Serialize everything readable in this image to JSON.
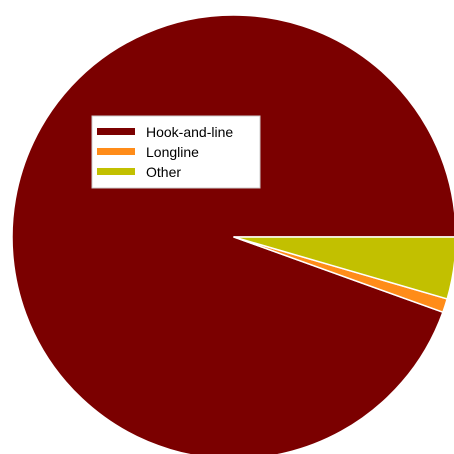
{
  "chart_data": {
    "type": "pie",
    "title": "",
    "slices": [
      {
        "label": "Hook-and-line",
        "value": 94.5,
        "color": "#7b0000"
      },
      {
        "label": "Longline",
        "value": 1.0,
        "color": "#ff8c19"
      },
      {
        "label": "Other",
        "value": 4.5,
        "color": "#c2c000"
      }
    ],
    "start": "3 o'clock",
    "direction": "counterclockwise",
    "legend": {
      "position": "top-left",
      "entries": [
        "Hook-and-line",
        "Longline",
        "Other"
      ]
    }
  }
}
